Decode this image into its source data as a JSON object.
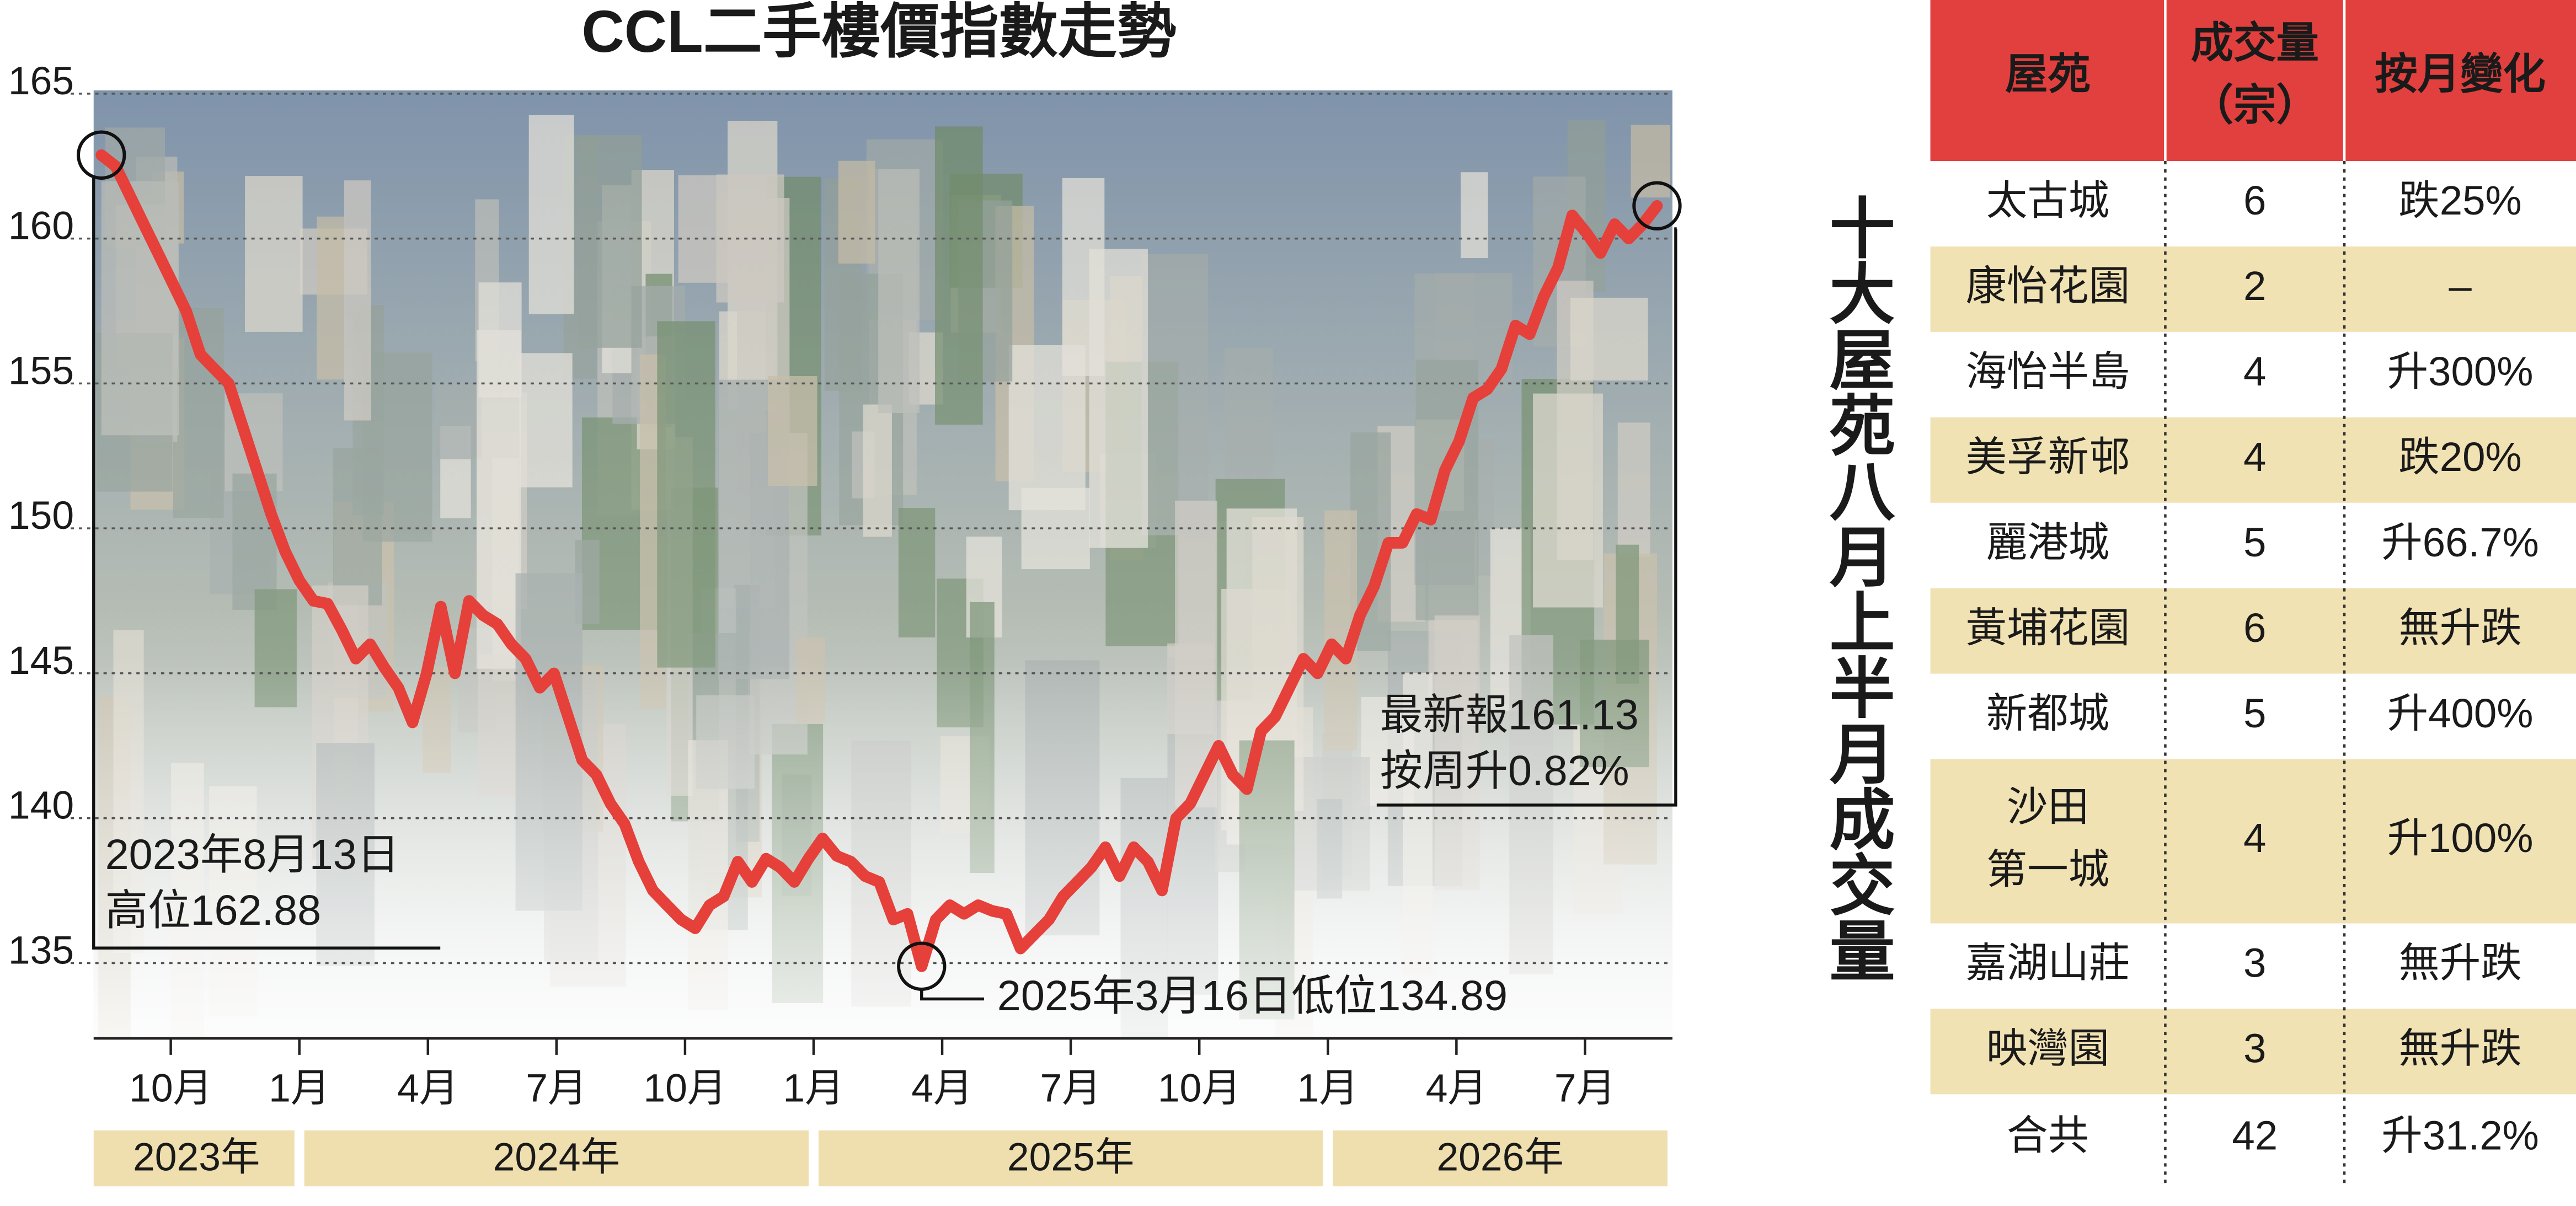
{
  "chart_data": {
    "type": "line",
    "title": "CCL二手樓價指數走勢",
    "color": "#e5403a",
    "grid": true,
    "x": [
      2023.615,
      2023.6425,
      2023.67,
      2023.6975,
      2023.725,
      2023.7525,
      2023.78,
      2023.8075,
      2023.835,
      2023.8625,
      2023.89,
      2023.9175,
      2023.945,
      2023.9725,
      2024.0,
      2024.0275,
      2024.055,
      2024.0825,
      2024.11,
      2024.1375,
      2024.165,
      2024.1925,
      2024.22,
      2024.2475,
      2024.275,
      2024.3025,
      2024.33,
      2024.3575,
      2024.385,
      2024.4125,
      2024.44,
      2024.4675,
      2024.495,
      2024.5225,
      2024.55,
      2024.5775,
      2024.605,
      2024.6325,
      2024.66,
      2024.6875,
      2024.715,
      2024.7425,
      2024.77,
      2024.7975,
      2024.825,
      2024.8525,
      2024.88,
      2024.9075,
      2024.935,
      2024.9625,
      2024.99,
      2025.0175,
      2025.045,
      2025.0725,
      2025.1,
      2025.1275,
      2025.155,
      2025.1825,
      2025.21,
      2025.2375,
      2025.265,
      2025.2925,
      2025.32,
      2025.3475,
      2025.375,
      2025.4025,
      2025.43,
      2025.4575,
      2025.485,
      2025.5125,
      2025.54,
      2025.5675,
      2025.595,
      2025.6225,
      2025.65,
      2025.6775,
      2025.705,
      2025.7325,
      2025.76,
      2025.7875,
      2025.815,
      2025.8425,
      2025.87,
      2025.8975,
      2025.925,
      2025.9525,
      2025.98,
      2026.0075,
      2026.035,
      2026.0625,
      2026.09,
      2026.1175,
      2026.145,
      2026.1725,
      2026.2,
      2026.2275,
      2026.255,
      2026.2825,
      2026.31,
      2026.3375,
      2026.365,
      2026.3925,
      2026.42,
      2026.4475,
      2026.475,
      2026.5025,
      2026.53,
      2026.5575,
      2026.585,
      2026.6125,
      2026.64
    ],
    "values": [
      162.88,
      162.5,
      161.5,
      160.5,
      159.5,
      158.5,
      157.5,
      156.0,
      155.5,
      155.0,
      153.5,
      152.0,
      150.5,
      149.2,
      148.2,
      147.5,
      147.4,
      146.5,
      145.5,
      146.0,
      145.2,
      144.5,
      143.3,
      145.0,
      147.3,
      145.0,
      147.5,
      147.0,
      146.7,
      146.0,
      145.5,
      144.5,
      145.0,
      143.5,
      142.0,
      141.5,
      140.5,
      139.8,
      138.5,
      137.5,
      137.0,
      136.5,
      136.2,
      137.0,
      137.3,
      138.5,
      137.8,
      138.6,
      138.3,
      137.8,
      138.6,
      139.3,
      138.7,
      138.5,
      138.0,
      137.8,
      136.5,
      136.7,
      134.89,
      136.5,
      137.0,
      136.7,
      137.0,
      136.8,
      136.7,
      135.5,
      136.0,
      136.5,
      137.3,
      137.8,
      138.3,
      139.0,
      138.0,
      139.0,
      138.5,
      137.5,
      140.0,
      140.5,
      141.5,
      142.5,
      141.5,
      141.0,
      143.0,
      143.5,
      144.5,
      145.5,
      145.0,
      146.0,
      145.5,
      147.0,
      148.0,
      149.5,
      149.5,
      150.5,
      150.3,
      152.0,
      153.0,
      154.5,
      154.8,
      155.5,
      157.0,
      156.7,
      158.0,
      159.0,
      160.8,
      160.2,
      159.5,
      160.5,
      160.0,
      160.5,
      161.13
    ],
    "xlim": [
      2023.6,
      2026.67
    ],
    "xticks": [
      {
        "value": 2023.75,
        "label": "10月"
      },
      {
        "value": 2024.0,
        "label": "1月"
      },
      {
        "value": 2024.25,
        "label": "4月"
      },
      {
        "value": 2024.5,
        "label": "7月"
      },
      {
        "value": 2024.75,
        "label": "10月"
      },
      {
        "value": 2025.0,
        "label": "1月"
      },
      {
        "value": 2025.25,
        "label": "4月"
      },
      {
        "value": 2025.5,
        "label": "7月"
      },
      {
        "value": 2025.75,
        "label": "10月"
      },
      {
        "value": 2026.0,
        "label": "1月"
      },
      {
        "value": 2026.25,
        "label": "4月"
      },
      {
        "value": 2026.5,
        "label": "7月"
      }
    ],
    "x2ticks": [
      {
        "value": 2023,
        "label": "2023年"
      },
      {
        "value": 2024,
        "label": "2024年"
      },
      {
        "value": 2025,
        "label": "2025年"
      },
      {
        "value": 2026,
        "label": "2026年"
      }
    ],
    "ylim": [
      132.4,
      165
    ],
    "yticks": [
      135,
      140,
      145,
      150,
      155,
      160,
      165
    ],
    "annotations": [
      [
        "2023年8月13日",
        "高位162.88"
      ],
      [
        "2025年3月16日低位134.89"
      ],
      [
        "最新報161.13",
        "按周升0.82%"
      ]
    ]
  },
  "side_title": "十大屋苑八月上半月成交量",
  "table": {
    "header": [
      "屋苑",
      [
        "成交量",
        "（宗）"
      ],
      "按月變化"
    ],
    "rows": [
      [
        "太古城",
        6,
        "跌25%"
      ],
      [
        "康怡花園",
        2,
        "–"
      ],
      [
        "海怡半島",
        4,
        "升300%"
      ],
      [
        "美孚新邨",
        4,
        "跌20%"
      ],
      [
        "麗港城",
        5,
        "升66.7%"
      ],
      [
        "黃埔花園",
        6,
        "無升跌"
      ],
      [
        "新都城",
        5,
        "升400%"
      ],
      [
        [
          "沙田",
          "第一城"
        ],
        4,
        "升100%"
      ],
      [
        "嘉湖山莊",
        3,
        "無升跌"
      ],
      [
        "映灣園",
        3,
        "無升跌"
      ],
      [
        "合共",
        42,
        "升31.2%"
      ]
    ]
  }
}
